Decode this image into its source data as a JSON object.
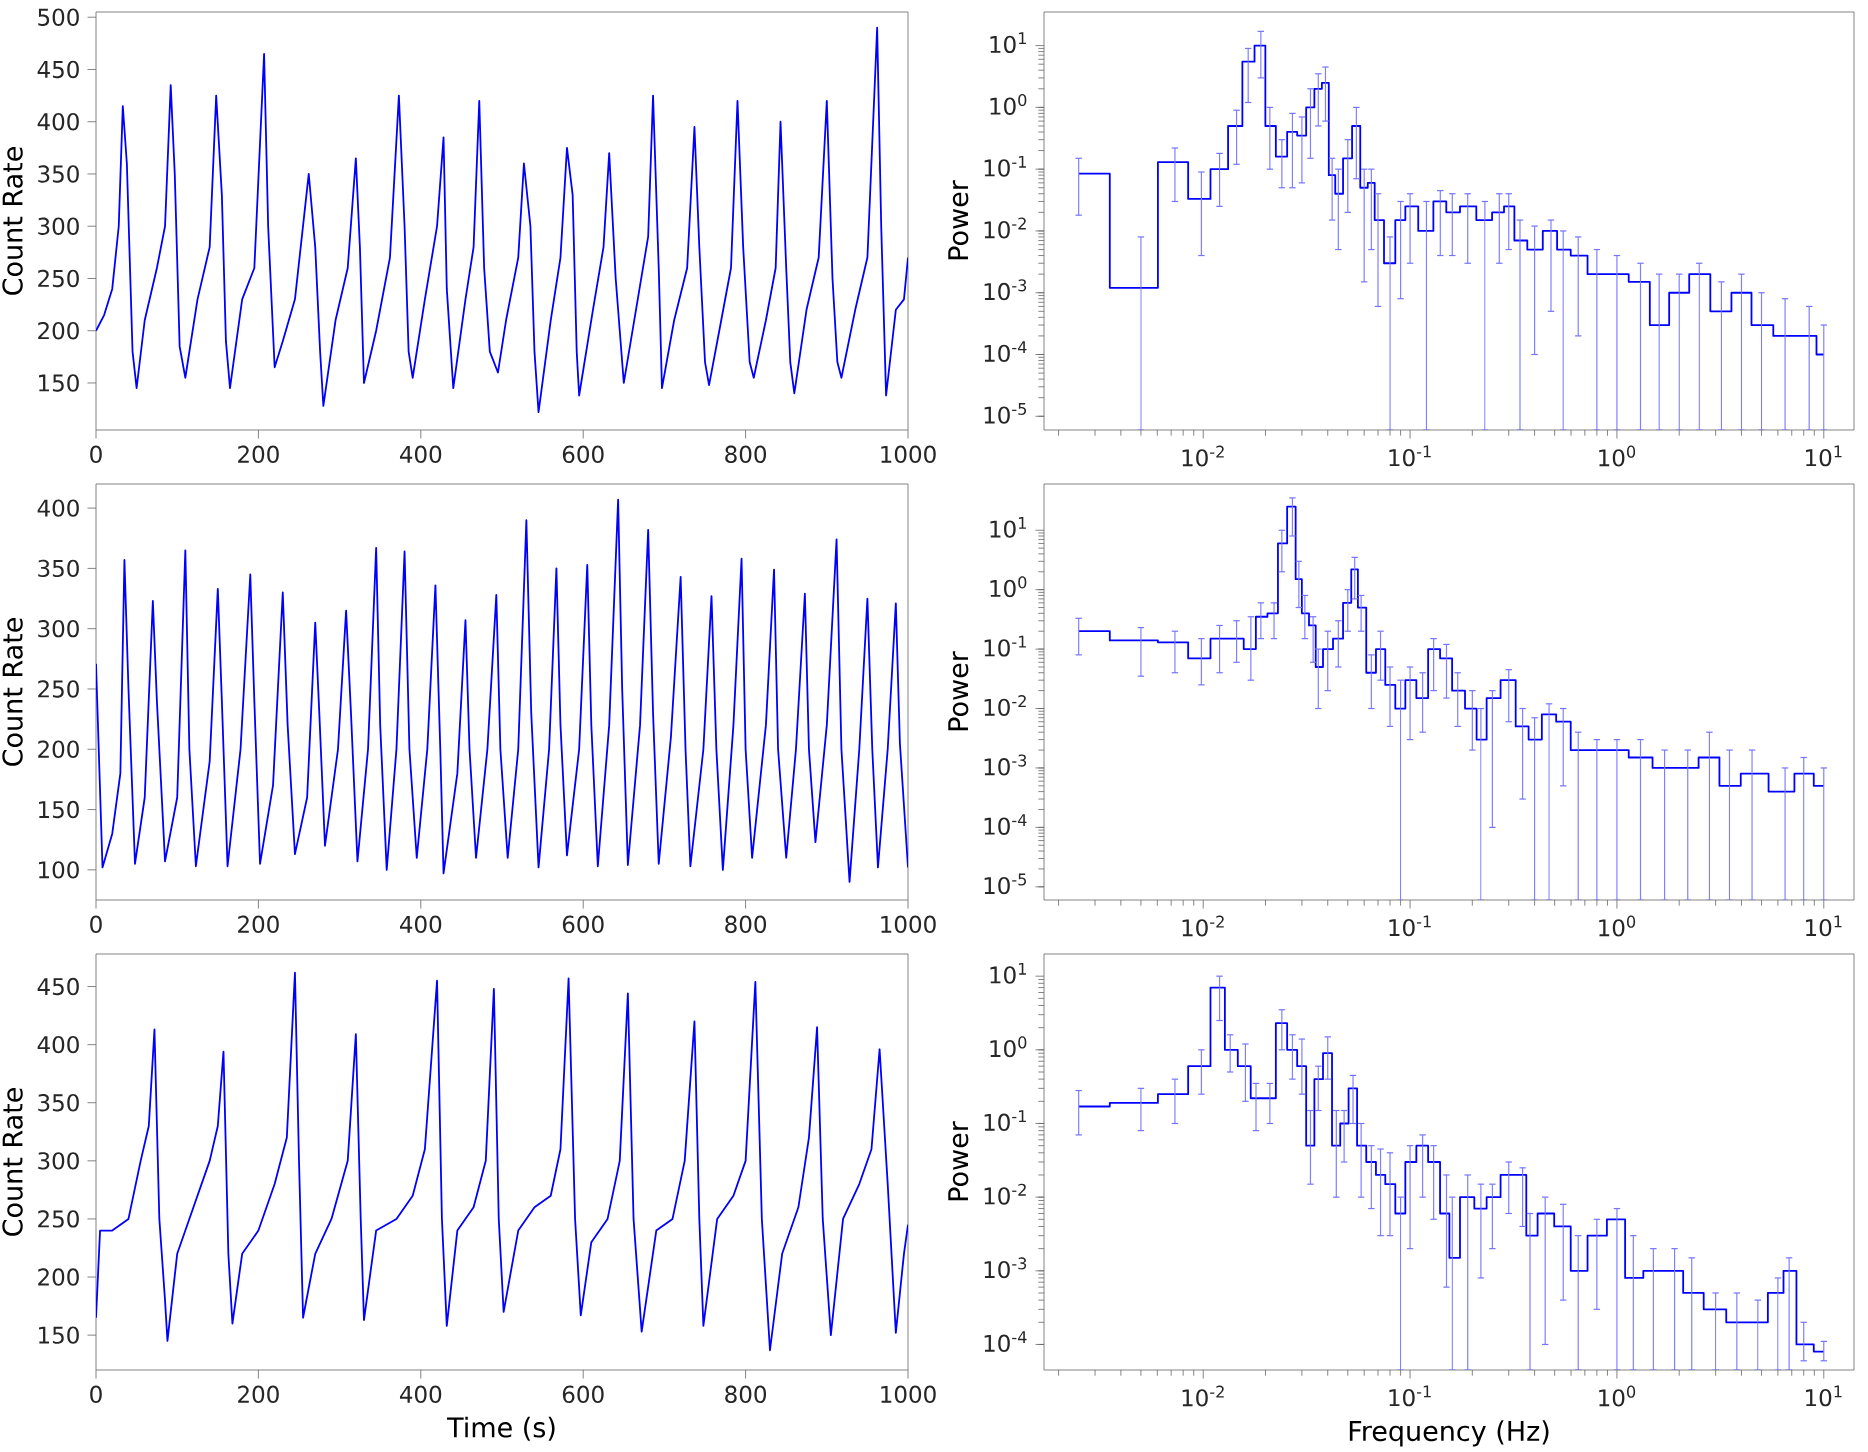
{
  "chart_data": [
    {
      "type": "line",
      "color": "#0000ff",
      "ylabel": "Count Rate",
      "xlim": [
        0,
        1000
      ],
      "xticks": [
        0,
        200,
        400,
        600,
        800,
        1000
      ],
      "ylim": [
        105,
        505
      ],
      "yticks": [
        150,
        200,
        250,
        300,
        350,
        400,
        450,
        500
      ],
      "x": [
        0,
        10,
        20,
        28,
        33,
        38,
        45,
        50,
        60,
        75,
        85,
        92,
        97,
        103,
        110,
        125,
        140,
        148,
        155,
        160,
        165,
        180,
        195,
        207,
        212,
        220,
        230,
        245,
        262,
        270,
        276,
        280,
        295,
        310,
        320,
        325,
        330,
        345,
        362,
        373,
        380,
        385,
        390,
        405,
        420,
        428,
        432,
        440,
        455,
        465,
        472,
        478,
        485,
        495,
        505,
        520,
        527,
        535,
        540,
        545,
        560,
        572,
        580,
        587,
        592,
        595,
        612,
        625,
        632,
        640,
        650,
        665,
        680,
        686,
        693,
        697,
        712,
        728,
        737,
        743,
        750,
        755,
        770,
        782,
        790,
        797,
        805,
        810,
        825,
        837,
        843,
        850,
        855,
        860,
        875,
        890,
        900,
        907,
        913,
        918,
        935,
        950,
        962,
        967,
        973,
        985,
        995,
        1000
      ],
      "values": [
        200,
        215,
        240,
        300,
        415,
        360,
        180,
        145,
        210,
        260,
        300,
        435,
        350,
        185,
        155,
        230,
        280,
        425,
        330,
        190,
        145,
        230,
        260,
        465,
        300,
        165,
        190,
        230,
        350,
        280,
        180,
        128,
        210,
        260,
        365,
        280,
        150,
        200,
        270,
        425,
        300,
        180,
        155,
        230,
        300,
        385,
        240,
        145,
        230,
        280,
        420,
        260,
        180,
        160,
        210,
        270,
        360,
        300,
        180,
        122,
        210,
        270,
        375,
        330,
        180,
        138,
        220,
        280,
        370,
        250,
        150,
        220,
        290,
        425,
        260,
        145,
        210,
        260,
        395,
        280,
        170,
        148,
        210,
        260,
        420,
        280,
        170,
        155,
        210,
        260,
        400,
        260,
        170,
        140,
        220,
        270,
        420,
        250,
        170,
        155,
        220,
        270,
        490,
        300,
        138,
        220,
        230,
        270
      ]
    },
    {
      "type": "step",
      "color": "#0000ff",
      "ylabel": "Power",
      "log": "xy",
      "xlim": [
        0.0017,
        14
      ],
      "xticks": [
        {
          "value": 0.01,
          "label": "10$^{-2}$"
        },
        {
          "value": 0.1,
          "label": "10$^{-1}$"
        },
        {
          "value": 1,
          "label": "10$^{0}$"
        },
        {
          "value": 10,
          "label": "10$^{1}$"
        }
      ],
      "ylim": [
        6e-06,
        35
      ],
      "yticks": [
        {
          "value": 1e-05,
          "label": "10$^{-5}$"
        },
        {
          "value": 0.0001,
          "label": "10$^{-4}$"
        },
        {
          "value": 0.001,
          "label": "10$^{-3}$"
        },
        {
          "value": 0.01,
          "label": "10$^{-2}$"
        },
        {
          "value": 0.1,
          "label": "10$^{-1}$"
        },
        {
          "value": 1,
          "label": "10$^{0}$"
        },
        {
          "value": 10,
          "label": "10$^{1}$"
        }
      ],
      "x": [
        0.0025,
        0.005,
        0.0073,
        0.0098,
        0.012,
        0.0145,
        0.0165,
        0.019,
        0.021,
        0.024,
        0.027,
        0.03,
        0.033,
        0.036,
        0.039,
        0.042,
        0.045,
        0.05,
        0.055,
        0.06,
        0.065,
        0.07,
        0.08,
        0.09,
        0.1,
        0.12,
        0.14,
        0.16,
        0.19,
        0.23,
        0.27,
        0.3,
        0.34,
        0.4,
        0.48,
        0.55,
        0.65,
        0.8,
        1.0,
        1.3,
        1.6,
        2.0,
        2.5,
        3.2,
        4.0,
        5.0,
        6.5,
        8.5,
        10
      ],
      "values": [
        0.085,
        0.0012,
        0.13,
        0.033,
        0.1,
        0.5,
        5.5,
        10,
        0.5,
        0.16,
        0.4,
        0.35,
        1.0,
        2.0,
        2.5,
        0.08,
        0.04,
        0.15,
        0.5,
        0.05,
        0.06,
        0.015,
        0.003,
        0.015,
        0.025,
        0.01,
        0.03,
        0.02,
        0.025,
        0.015,
        0.02,
        0.025,
        0.007,
        0.005,
        0.01,
        0.005,
        0.004,
        0.002,
        0.002,
        0.0015,
        0.0003,
        0.001,
        0.002,
        0.0005,
        0.001,
        0.0003,
        0.0002,
        0.0002,
        0.0001
      ],
      "errors": [
        [
          0.018,
          0.15
        ],
        [
          6e-06,
          0.008
        ],
        [
          0.03,
          0.22
        ],
        [
          0.004,
          0.09
        ],
        [
          0.025,
          0.18
        ],
        [
          0.12,
          0.9
        ],
        [
          1.2,
          9
        ],
        [
          3,
          17
        ],
        [
          0.1,
          1
        ],
        [
          0.05,
          0.3
        ],
        [
          0.05,
          0.8
        ],
        [
          0.06,
          0.7
        ],
        [
          0.15,
          2
        ],
        [
          0.5,
          3.5
        ],
        [
          0.6,
          4.5
        ],
        [
          0.015,
          0.15
        ],
        [
          0.005,
          0.1
        ],
        [
          0.02,
          0.3
        ],
        [
          0.07,
          1.0
        ],
        [
          0.0015,
          0.1
        ],
        [
          0.005,
          0.1
        ],
        [
          0.0006,
          0.04
        ],
        [
          6e-06,
          0.008
        ],
        [
          0.0008,
          0.03
        ],
        [
          0.003,
          0.04
        ],
        [
          6e-06,
          0.03
        ],
        [
          0.004,
          0.045
        ],
        [
          0.004,
          0.04
        ],
        [
          0.003,
          0.04
        ],
        [
          6e-06,
          0.03
        ],
        [
          0.003,
          0.04
        ],
        [
          0.005,
          0.04
        ],
        [
          6e-06,
          0.015
        ],
        [
          0.0001,
          0.012
        ],
        [
          0.0005,
          0.015
        ],
        [
          6e-06,
          0.01
        ],
        [
          0.0002,
          0.008
        ],
        [
          6e-06,
          0.005
        ],
        [
          6e-06,
          0.004
        ],
        [
          6e-06,
          0.003
        ],
        [
          6e-06,
          0.002
        ],
        [
          6e-06,
          0.002
        ],
        [
          6e-06,
          0.003
        ],
        [
          6e-06,
          0.0015
        ],
        [
          6e-06,
          0.002
        ],
        [
          6e-06,
          0.001
        ],
        [
          6e-06,
          0.0008
        ],
        [
          6e-06,
          0.0006
        ],
        [
          6e-06,
          0.0003
        ]
      ]
    },
    {
      "type": "line",
      "color": "#0000ff",
      "ylabel": "Count Rate",
      "xlim": [
        0,
        1000
      ],
      "xticks": [
        0,
        200,
        400,
        600,
        800,
        1000
      ],
      "ylim": [
        75,
        420
      ],
      "yticks": [
        100,
        150,
        200,
        250,
        300,
        350,
        400
      ],
      "x": [
        0,
        8,
        20,
        30,
        35,
        40,
        48,
        60,
        70,
        75,
        85,
        100,
        110,
        115,
        123,
        140,
        150,
        155,
        162,
        178,
        190,
        195,
        202,
        218,
        230,
        236,
        245,
        260,
        270,
        275,
        282,
        298,
        308,
        314,
        322,
        335,
        345,
        350,
        358,
        370,
        380,
        386,
        395,
        408,
        418,
        424,
        428,
        445,
        455,
        460,
        468,
        482,
        493,
        498,
        507,
        520,
        530,
        536,
        545,
        558,
        567,
        572,
        580,
        595,
        605,
        610,
        618,
        632,
        643,
        648,
        655,
        670,
        680,
        686,
        693,
        708,
        720,
        726,
        732,
        748,
        758,
        764,
        772,
        785,
        795,
        800,
        808,
        825,
        835,
        840,
        850,
        862,
        873,
        878,
        886,
        900,
        912,
        918,
        928,
        940,
        950,
        956,
        963,
        975,
        985,
        990,
        1000
      ],
      "values": [
        271,
        102,
        130,
        180,
        357,
        250,
        105,
        160,
        323,
        240,
        107,
        160,
        365,
        200,
        103,
        190,
        333,
        240,
        103,
        200,
        345,
        240,
        105,
        170,
        330,
        220,
        113,
        160,
        305,
        230,
        120,
        200,
        315,
        230,
        107,
        200,
        367,
        220,
        100,
        200,
        364,
        200,
        110,
        200,
        336,
        200,
        97,
        180,
        307,
        200,
        110,
        200,
        328,
        200,
        110,
        200,
        390,
        230,
        102,
        200,
        350,
        220,
        112,
        200,
        353,
        220,
        103,
        220,
        407,
        250,
        104,
        220,
        382,
        230,
        105,
        210,
        343,
        200,
        103,
        200,
        327,
        200,
        100,
        220,
        358,
        200,
        110,
        220,
        349,
        200,
        110,
        200,
        329,
        200,
        123,
        220,
        374,
        200,
        90,
        200,
        325,
        200,
        102,
        200,
        321,
        205,
        102
      ]
    },
    {
      "type": "step",
      "color": "#0000ff",
      "ylabel": "Power",
      "log": "xy",
      "xlim": [
        0.0017,
        14
      ],
      "xticks": [
        {
          "value": 0.01,
          "label": "10$^{-2}$"
        },
        {
          "value": 0.1,
          "label": "10$^{-1}$"
        },
        {
          "value": 1,
          "label": "10$^{0}$"
        },
        {
          "value": 10,
          "label": "10$^{1}$"
        }
      ],
      "ylim": [
        6e-06,
        60
      ],
      "yticks": [
        {
          "value": 1e-05,
          "label": "10$^{-5}$"
        },
        {
          "value": 0.0001,
          "label": "10$^{-4}$"
        },
        {
          "value": 0.001,
          "label": "10$^{-3}$"
        },
        {
          "value": 0.01,
          "label": "10$^{-2}$"
        },
        {
          "value": 0.1,
          "label": "10$^{-1}$"
        },
        {
          "value": 1,
          "label": "10$^{0}$"
        },
        {
          "value": 10,
          "label": "10$^{1}$"
        }
      ],
      "x": [
        0.0025,
        0.005,
        0.0073,
        0.0098,
        0.012,
        0.0145,
        0.017,
        0.019,
        0.022,
        0.024,
        0.027,
        0.029,
        0.031,
        0.034,
        0.036,
        0.04,
        0.045,
        0.05,
        0.054,
        0.058,
        0.065,
        0.072,
        0.08,
        0.09,
        0.1,
        0.115,
        0.13,
        0.15,
        0.17,
        0.2,
        0.22,
        0.25,
        0.3,
        0.35,
        0.4,
        0.47,
        0.55,
        0.65,
        0.8,
        1.0,
        1.3,
        1.7,
        2.2,
        2.8,
        3.5,
        4.5,
        6.5,
        8,
        10
      ],
      "values": [
        0.2,
        0.14,
        0.13,
        0.07,
        0.15,
        0.15,
        0.1,
        0.35,
        0.4,
        6,
        25,
        1.5,
        0.4,
        0.25,
        0.05,
        0.1,
        0.15,
        0.6,
        2.2,
        0.5,
        0.04,
        0.1,
        0.025,
        0.01,
        0.03,
        0.015,
        0.1,
        0.07,
        0.02,
        0.01,
        0.003,
        0.015,
        0.03,
        0.005,
        0.003,
        0.008,
        0.006,
        0.002,
        0.002,
        0.002,
        0.0015,
        0.001,
        0.001,
        0.0015,
        0.0005,
        0.0008,
        0.0004,
        0.0008,
        0.0005
      ],
      "errors": [
        [
          0.08,
          0.33
        ],
        [
          0.035,
          0.23
        ],
        [
          0.04,
          0.2
        ],
        [
          0.025,
          0.15
        ],
        [
          0.04,
          0.25
        ],
        [
          0.06,
          0.3
        ],
        [
          0.03,
          0.35
        ],
        [
          0.15,
          0.6
        ],
        [
          0.15,
          0.6
        ],
        [
          2,
          10
        ],
        [
          8,
          35
        ],
        [
          0.5,
          3
        ],
        [
          0.15,
          0.8
        ],
        [
          0.06,
          0.35
        ],
        [
          0.01,
          0.1
        ],
        [
          0.02,
          0.2
        ],
        [
          0.05,
          0.3
        ],
        [
          0.2,
          1.0
        ],
        [
          0.7,
          3.5
        ],
        [
          0.2,
          0.8
        ],
        [
          0.01,
          0.08
        ],
        [
          0.03,
          0.2
        ],
        [
          0.005,
          0.05
        ],
        [
          6e-06,
          0.03
        ],
        [
          0.003,
          0.05
        ],
        [
          0.004,
          0.04
        ],
        [
          0.02,
          0.15
        ],
        [
          0.015,
          0.12
        ],
        [
          0.005,
          0.04
        ],
        [
          0.002,
          0.02
        ],
        [
          6e-06,
          0.01
        ],
        [
          0.0001,
          0.02
        ],
        [
          0.006,
          0.045
        ],
        [
          0.0003,
          0.01
        ],
        [
          6e-06,
          0.007
        ],
        [
          6e-06,
          0.012
        ],
        [
          0.0005,
          0.01
        ],
        [
          6e-06,
          0.004
        ],
        [
          6e-06,
          0.003
        ],
        [
          6e-06,
          0.003
        ],
        [
          6e-06,
          0.003
        ],
        [
          6e-06,
          0.002
        ],
        [
          6e-06,
          0.002
        ],
        [
          6e-06,
          0.004
        ],
        [
          6e-06,
          0.002
        ],
        [
          6e-06,
          0.002
        ],
        [
          6e-06,
          0.001
        ],
        [
          6e-06,
          0.0015
        ],
        [
          6e-06,
          0.001
        ]
      ]
    },
    {
      "type": "line",
      "color": "#0000ff",
      "ylabel": "Count Rate",
      "xlabel": "Time (s)",
      "xlim": [
        0,
        1000
      ],
      "xticks": [
        0,
        200,
        400,
        600,
        800,
        1000
      ],
      "ylim": [
        120,
        478
      ],
      "yticks": [
        150,
        200,
        250,
        300,
        350,
        400,
        450
      ],
      "x": [
        0,
        5,
        20,
        40,
        55,
        65,
        72,
        78,
        85,
        88,
        100,
        120,
        140,
        150,
        157,
        163,
        168,
        180,
        200,
        220,
        235,
        245,
        250,
        255,
        270,
        290,
        310,
        320,
        326,
        330,
        345,
        370,
        390,
        405,
        420,
        426,
        432,
        445,
        465,
        480,
        490,
        496,
        502,
        520,
        540,
        560,
        572,
        582,
        590,
        597,
        610,
        630,
        645,
        655,
        662,
        672,
        690,
        710,
        725,
        737,
        743,
        748,
        765,
        785,
        800,
        812,
        820,
        830,
        845,
        865,
        878,
        888,
        895,
        905,
        920,
        940,
        955,
        965,
        975,
        985,
        995,
        1000
      ],
      "values": [
        165,
        240,
        240,
        250,
        300,
        330,
        413,
        250,
        180,
        145,
        220,
        260,
        300,
        330,
        394,
        220,
        160,
        220,
        240,
        280,
        320,
        462,
        300,
        165,
        220,
        250,
        300,
        409,
        250,
        163,
        240,
        250,
        270,
        310,
        455,
        250,
        158,
        240,
        260,
        300,
        448,
        250,
        170,
        240,
        260,
        270,
        310,
        457,
        250,
        167,
        230,
        250,
        300,
        444,
        250,
        153,
        240,
        250,
        300,
        420,
        250,
        158,
        250,
        270,
        300,
        454,
        250,
        137,
        220,
        260,
        320,
        415,
        250,
        150,
        250,
        280,
        310,
        396,
        280,
        152,
        220,
        245
      ]
    },
    {
      "type": "step",
      "color": "#0000ff",
      "ylabel": "Power",
      "xlabel": "Frequency (Hz)",
      "log": "xy",
      "xlim": [
        0.0017,
        14
      ],
      "xticks": [
        {
          "value": 0.01,
          "label": "10$^{-2}$"
        },
        {
          "value": 0.1,
          "label": "10$^{-1}$"
        },
        {
          "value": 1,
          "label": "10$^{0}$"
        },
        {
          "value": 10,
          "label": "10$^{1}$"
        }
      ],
      "ylim": [
        4.5e-05,
        20
      ],
      "yticks": [
        {
          "value": 0.0001,
          "label": "10$^{-4}$"
        },
        {
          "value": 0.001,
          "label": "10$^{-3}$"
        },
        {
          "value": 0.01,
          "label": "10$^{-2}$"
        },
        {
          "value": 0.1,
          "label": "10$^{-1}$"
        },
        {
          "value": 1,
          "label": "10$^{0}$"
        },
        {
          "value": 10,
          "label": "10$^{1}$"
        }
      ],
      "x": [
        0.0025,
        0.005,
        0.0073,
        0.0098,
        0.012,
        0.0135,
        0.016,
        0.018,
        0.021,
        0.024,
        0.027,
        0.03,
        0.033,
        0.036,
        0.04,
        0.044,
        0.048,
        0.053,
        0.058,
        0.065,
        0.072,
        0.08,
        0.09,
        0.1,
        0.115,
        0.13,
        0.15,
        0.16,
        0.19,
        0.22,
        0.25,
        0.3,
        0.35,
        0.38,
        0.45,
        0.55,
        0.65,
        0.8,
        1.0,
        1.2,
        1.5,
        1.9,
        2.3,
        3.0,
        3.8,
        4.8,
        6.0,
        6.8,
        8,
        10
      ],
      "values": [
        0.17,
        0.19,
        0.25,
        0.6,
        7,
        1.0,
        0.6,
        0.22,
        0.22,
        2.3,
        1.0,
        0.6,
        0.05,
        0.4,
        0.9,
        0.05,
        0.1,
        0.3,
        0.05,
        0.03,
        0.02,
        0.015,
        0.006,
        0.03,
        0.05,
        0.03,
        0.006,
        0.0015,
        0.01,
        0.007,
        0.01,
        0.02,
        0.02,
        0.003,
        0.006,
        0.004,
        0.001,
        0.003,
        0.005,
        0.0008,
        0.001,
        0.001,
        0.0005,
        0.0003,
        0.0002,
        0.0002,
        0.0005,
        0.001,
        0.0001,
        8e-05
      ],
      "errors": [
        [
          0.07,
          0.28
        ],
        [
          0.08,
          0.3
        ],
        [
          0.1,
          0.4
        ],
        [
          0.25,
          1.0
        ],
        [
          2.5,
          10
        ],
        [
          0.5,
          1.6
        ],
        [
          0.2,
          1.2
        ],
        [
          0.08,
          0.35
        ],
        [
          0.1,
          0.35
        ],
        [
          1,
          3.5
        ],
        [
          0.4,
          1.6
        ],
        [
          0.25,
          1.4
        ],
        [
          0.015,
          0.15
        ],
        [
          0.15,
          0.6
        ],
        [
          0.4,
          1.5
        ],
        [
          0.01,
          0.15
        ],
        [
          0.03,
          0.15
        ],
        [
          0.1,
          0.45
        ],
        [
          0.01,
          0.1
        ],
        [
          0.007,
          0.05
        ],
        [
          0.003,
          0.045
        ],
        [
          0.003,
          0.04
        ],
        [
          4.5e-05,
          0.01
        ],
        [
          0.002,
          0.05
        ],
        [
          0.01,
          0.07
        ],
        [
          0.005,
          0.05
        ],
        [
          0.0006,
          0.02
        ],
        [
          4.5e-05,
          0.01
        ],
        [
          4.5e-05,
          0.02
        ],
        [
          0.0008,
          0.015
        ],
        [
          0.002,
          0.015
        ],
        [
          0.006,
          0.03
        ],
        [
          0.004,
          0.025
        ],
        [
          4.5e-05,
          0.006
        ],
        [
          0.0001,
          0.01
        ],
        [
          0.0004,
          0.008
        ],
        [
          4.5e-05,
          0.003
        ],
        [
          0.0003,
          0.005
        ],
        [
          4.5e-05,
          0.007
        ],
        [
          4.5e-05,
          0.003
        ],
        [
          4.5e-05,
          0.002
        ],
        [
          4.5e-05,
          0.002
        ],
        [
          4.5e-05,
          0.0015
        ],
        [
          4.5e-05,
          0.0005
        ],
        [
          4.5e-05,
          0.0005
        ],
        [
          4.5e-05,
          0.0004
        ],
        [
          4.5e-05,
          0.0008
        ],
        [
          4.5e-05,
          0.0015
        ],
        [
          6e-05,
          0.0002
        ],
        [
          6e-05,
          0.00011
        ]
      ]
    }
  ]
}
